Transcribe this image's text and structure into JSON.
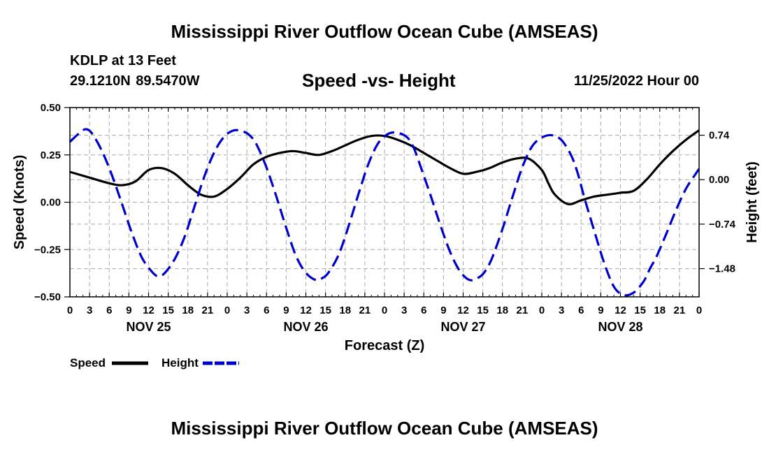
{
  "header": {
    "title": "Mississippi River Outflow Ocean Cube (AMSEAS)",
    "station": "KDLP at 13 Feet",
    "coords": "29.1210N  89.5470W",
    "subtitle": "Speed -vs- Height",
    "datetime": "11/25/2022 Hour 00"
  },
  "footer": {
    "title": "Mississippi River Outflow Ocean Cube (AMSEAS)"
  },
  "colors": {
    "speed": "#000000",
    "height": "#0000cc",
    "grid": "#aaaaaa"
  },
  "chart_data": {
    "type": "line",
    "xlabel": "Forecast (Z)",
    "ylabel": "Speed (Knots)",
    "y2label": "Height (feet)",
    "xlim": [
      0,
      96
    ],
    "ylim": [
      -0.5,
      0.5
    ],
    "y2lim": [
      -1.95,
      1.2
    ],
    "x_ticks": [
      0,
      3,
      6,
      9,
      12,
      15,
      18,
      21,
      24,
      27,
      30,
      33,
      36,
      39,
      42,
      45,
      48,
      51,
      54,
      57,
      60,
      63,
      66,
      69,
      72,
      75,
      78,
      81,
      84,
      87,
      90,
      93,
      96
    ],
    "x_tick_labels": [
      "0",
      "3",
      "6",
      "9",
      "12",
      "15",
      "18",
      "21",
      "0",
      "3",
      "6",
      "9",
      "12",
      "15",
      "18",
      "21",
      "0",
      "3",
      "6",
      "9",
      "12",
      "15",
      "18",
      "21",
      "0",
      "3",
      "6",
      "9",
      "12",
      "15",
      "18",
      "21",
      "0"
    ],
    "day_labels": [
      {
        "x": 12,
        "label": "NOV 25"
      },
      {
        "x": 36,
        "label": "NOV 26"
      },
      {
        "x": 60,
        "label": "NOV 27"
      },
      {
        "x": 84,
        "label": "NOV 28"
      }
    ],
    "y_ticks": [
      0.5,
      0.25,
      0.0,
      -0.25,
      -0.5
    ],
    "y_tick_labels": [
      "0.50",
      "0.25",
      "0.00",
      "−0.25",
      "−0.50"
    ],
    "y2_ticks": [
      0.74,
      0.0,
      -0.74,
      -1.48
    ],
    "y2_tick_labels": [
      "0.74",
      "0.00",
      "−0.74",
      "−1.48"
    ],
    "legend": [
      {
        "name": "Speed",
        "style": "solid"
      },
      {
        "name": "Height",
        "style": "dashed"
      }
    ],
    "series": [
      {
        "name": "Speed",
        "axis": "left",
        "style": "solid",
        "x": [
          0,
          3,
          6,
          8,
          10,
          12,
          14,
          16,
          18,
          20,
          22,
          24,
          26,
          28,
          30,
          32,
          34,
          36,
          38,
          40,
          42,
          44,
          46,
          48,
          50,
          52,
          54,
          56,
          58,
          60,
          62,
          64,
          66,
          68,
          70,
          72,
          73,
          74,
          76,
          78,
          80,
          82,
          84,
          86,
          88,
          90,
          92,
          94,
          96
        ],
        "values": [
          0.16,
          0.13,
          0.1,
          0.09,
          0.11,
          0.17,
          0.18,
          0.15,
          0.09,
          0.04,
          0.03,
          0.07,
          0.13,
          0.2,
          0.24,
          0.26,
          0.27,
          0.26,
          0.25,
          0.27,
          0.3,
          0.33,
          0.35,
          0.35,
          0.33,
          0.3,
          0.26,
          0.22,
          0.18,
          0.15,
          0.16,
          0.18,
          0.21,
          0.23,
          0.23,
          0.17,
          0.1,
          0.04,
          -0.01,
          0.01,
          0.03,
          0.04,
          0.05,
          0.06,
          0.12,
          0.2,
          0.27,
          0.33,
          0.38
        ]
      },
      {
        "name": "Height",
        "axis": "right",
        "style": "dashed",
        "x": [
          0,
          1.5,
          2.5,
          3.5,
          5,
          6.5,
          8,
          9.5,
          11,
          12.5,
          13.5,
          14.5,
          16,
          17.5,
          19,
          20.5,
          22,
          23.5,
          25,
          26.5,
          27.5,
          28.5,
          30,
          31.5,
          33,
          34.5,
          36,
          37.5,
          38.5,
          39.5,
          41,
          42.5,
          44,
          45.5,
          47,
          48.5,
          50,
          51.5,
          52.5,
          53.5,
          55,
          56.5,
          58,
          59.5,
          61,
          62.5,
          63.5,
          64.5,
          66,
          67.5,
          69,
          70.5,
          72,
          73.5,
          75,
          76.5,
          77.5,
          78.5,
          80,
          81.5,
          83,
          84.5,
          86,
          87.5,
          88.5,
          89.5,
          91,
          92.5,
          94,
          95.5,
          96
        ],
        "values": [
          0.63,
          0.78,
          0.84,
          0.75,
          0.45,
          0.05,
          -0.42,
          -0.9,
          -1.3,
          -1.53,
          -1.61,
          -1.55,
          -1.32,
          -0.95,
          -0.45,
          0.05,
          0.45,
          0.71,
          0.82,
          0.8,
          0.73,
          0.58,
          0.2,
          -0.28,
          -0.8,
          -1.27,
          -1.55,
          -1.67,
          -1.64,
          -1.54,
          -1.25,
          -0.78,
          -0.25,
          0.25,
          0.6,
          0.76,
          0.78,
          0.7,
          0.52,
          0.22,
          -0.25,
          -0.75,
          -1.2,
          -1.52,
          -1.67,
          -1.62,
          -1.5,
          -1.28,
          -0.82,
          -0.3,
          0.2,
          0.55,
          0.7,
          0.74,
          0.66,
          0.4,
          0.1,
          -0.3,
          -0.85,
          -1.38,
          -1.78,
          -1.92,
          -1.88,
          -1.7,
          -1.48,
          -1.28,
          -0.9,
          -0.5,
          -0.15,
          0.1,
          0.18
        ]
      }
    ]
  }
}
